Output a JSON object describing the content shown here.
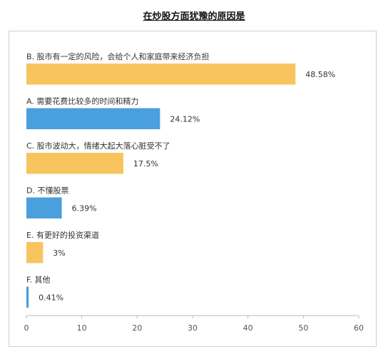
{
  "chart_data": {
    "type": "bar",
    "orientation": "horizontal",
    "title": "在炒股方面犹豫的原因是",
    "categories": [
      "B. 股市有一定的风险，会给个人和家庭带来经济负担",
      "A. 需要花费比较多的时间和精力",
      "C. 股市波动大，情绪大起大落心脏受不了",
      "D. 不懂股票",
      "E. 有更好的投资渠道",
      "F. 其他"
    ],
    "values": [
      48.58,
      24.12,
      17.5,
      6.39,
      3,
      0.41
    ],
    "value_labels": [
      "48.58%",
      "24.12%",
      "17.5%",
      "6.39%",
      "3%",
      "0.41%"
    ],
    "bar_colors": [
      "#F7C45E",
      "#4A9FDD",
      "#F7C45E",
      "#4A9FDD",
      "#F7C45E",
      "#4A9FDD"
    ],
    "xlim": [
      0,
      60
    ],
    "xticks": [
      0,
      10,
      20,
      30,
      40,
      50,
      60
    ],
    "grid": false,
    "legend": "none"
  }
}
